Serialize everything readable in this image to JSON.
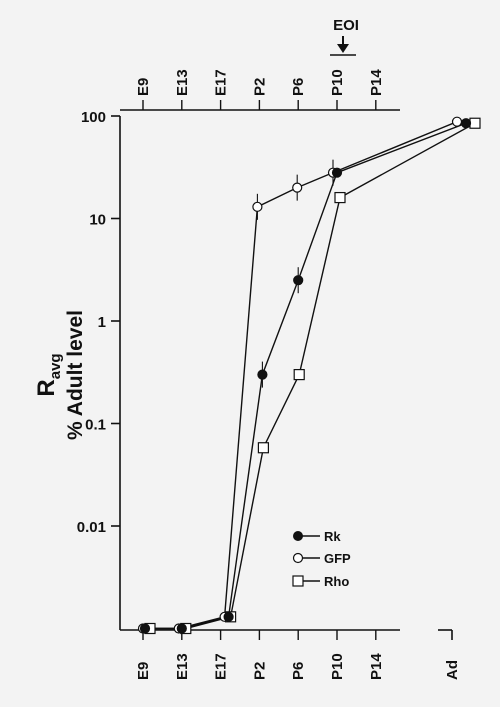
{
  "chart_data": {
    "type": "line",
    "title": "",
    "ylabel_line1": "R",
    "ylabel_sub": "avg",
    "ylabel_line2": "% Adult level",
    "y_scale": "log",
    "ylim": [
      0.001,
      100
    ],
    "y_ticks": [
      {
        "value": 100,
        "label": "100"
      },
      {
        "value": 10,
        "label": "10"
      },
      {
        "value": 1,
        "label": "1"
      },
      {
        "value": 0.1,
        "label": "0.1"
      },
      {
        "value": 0.01,
        "label": "0.01"
      }
    ],
    "x_ticks": [
      "E9",
      "E13",
      "E17",
      "P2",
      "P6",
      "P10",
      "P14"
    ],
    "x_extra_tick": "Ad",
    "annotation": "EOI",
    "series": [
      {
        "name": "Rk",
        "marker": "filled-circle",
        "points": [
          {
            "x": "E9",
            "y": 0.001
          },
          {
            "x": "E13",
            "y": 0.001
          },
          {
            "x": "E17",
            "y": 0.0013
          },
          {
            "x": "P2",
            "y": 0.3
          },
          {
            "x": "P6",
            "y": 2.5
          },
          {
            "x": "P10",
            "y": 28
          },
          {
            "x": "Ad",
            "y": 85
          }
        ]
      },
      {
        "name": "GFP",
        "marker": "open-circle",
        "points": [
          {
            "x": "E9",
            "y": 0.001
          },
          {
            "x": "E13",
            "y": 0.001
          },
          {
            "x": "E17",
            "y": 0.0013
          },
          {
            "x": "P2",
            "y": 13
          },
          {
            "x": "P6",
            "y": 20
          },
          {
            "x": "P10",
            "y": 28
          },
          {
            "x": "Ad",
            "y": 88
          }
        ]
      },
      {
        "name": "Rho",
        "marker": "open-square",
        "points": [
          {
            "x": "E9",
            "y": 0.001
          },
          {
            "x": "E13",
            "y": 0.001
          },
          {
            "x": "E17",
            "y": 0.0013
          },
          {
            "x": "P2",
            "y": 0.058
          },
          {
            "x": "P6",
            "y": 0.3
          },
          {
            "x": "P10",
            "y": 16
          },
          {
            "x": "Ad",
            "y": 85
          }
        ]
      }
    ]
  }
}
